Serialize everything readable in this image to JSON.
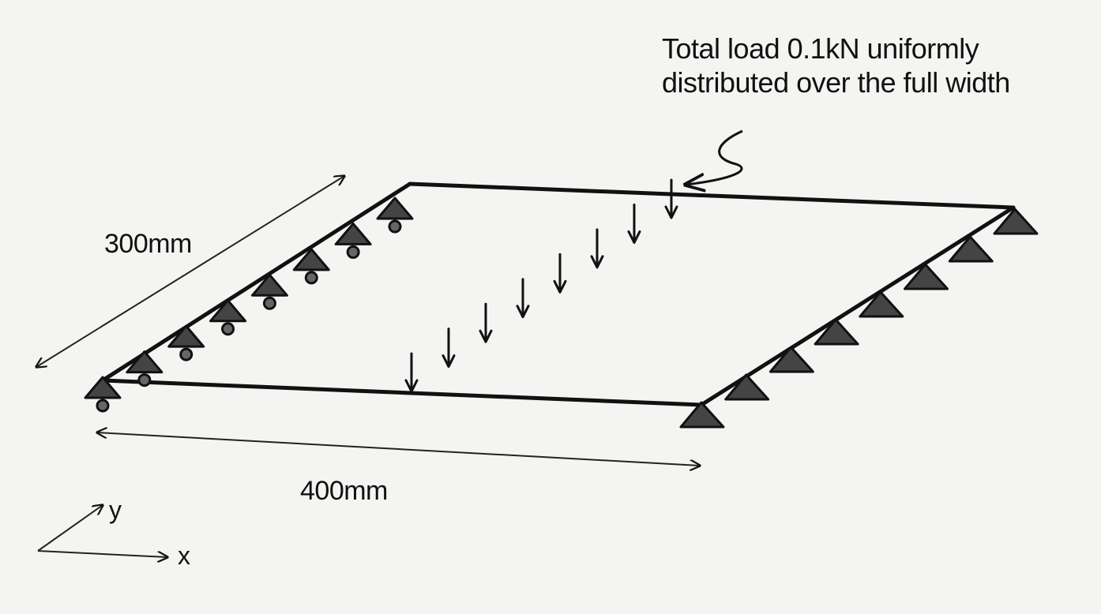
{
  "load_note": {
    "line1": "Total load 0.1kN uniformly",
    "line2": "distributed over the full width"
  },
  "dimensions": {
    "width": "300mm",
    "length": "400mm"
  },
  "axes": {
    "y": "y",
    "x": "x"
  },
  "supports": {
    "left_edge": "roller",
    "right_edge": "pin",
    "left_count": 8,
    "right_count": 8
  },
  "load_arrows": 8,
  "colors": {
    "line": "#111111",
    "support_fill": "#444444",
    "roller_fill": "#666666",
    "background": "#f4f4f2"
  }
}
